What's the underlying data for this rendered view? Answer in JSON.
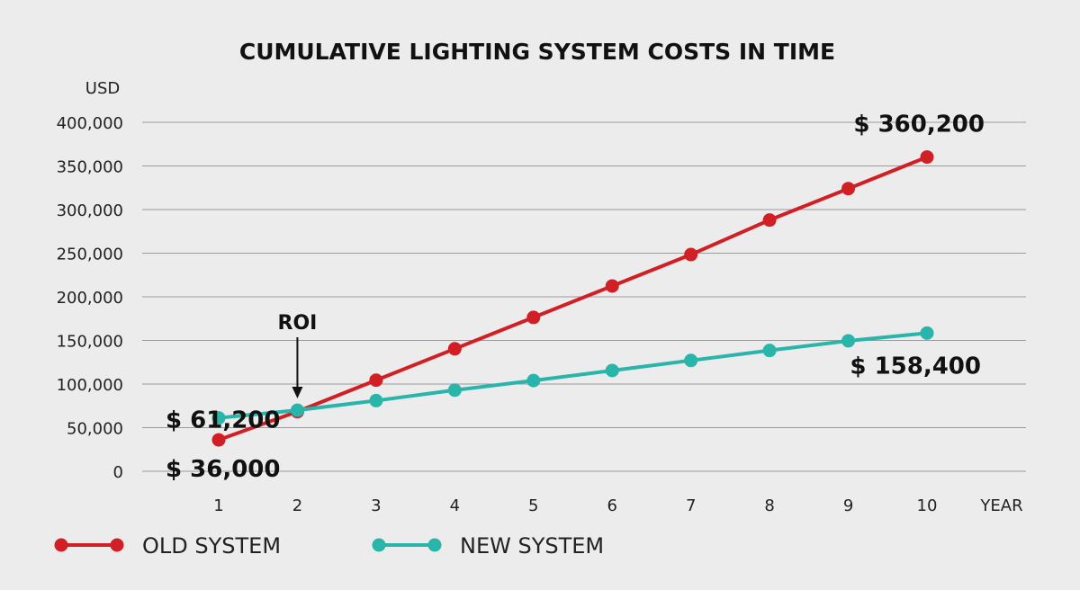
{
  "chart_data": {
    "type": "line",
    "title": "CUMULATIVE LIGHTING SYSTEM COSTS IN TIME",
    "ylabel": "USD",
    "xlabel": "YEAR",
    "x": [
      1,
      2,
      3,
      4,
      5,
      6,
      7,
      8,
      9,
      10
    ],
    "ylim": [
      0,
      400000
    ],
    "yticks": [
      0,
      50000,
      100000,
      150000,
      200000,
      250000,
      300000,
      350000,
      400000
    ],
    "ytick_labels": [
      "0",
      "50,000",
      "100,000",
      "150,000",
      "200,000",
      "250,000",
      "300,000",
      "350,000",
      "400,000"
    ],
    "grid": true,
    "legend_position": "bottom-left",
    "series": [
      {
        "name": "OLD SYSTEM",
        "color": "#d11f26",
        "values": [
          36000,
          68400,
          104400,
          140400,
          176400,
          212400,
          248400,
          288000,
          324000,
          360200
        ]
      },
      {
        "name": "NEW SYSTEM",
        "color": "#2ab5aa",
        "values": [
          61200,
          70000,
          81000,
          93000,
          104000,
          115500,
          127000,
          138500,
          149500,
          158400
        ]
      }
    ],
    "annotations": [
      {
        "text": "$ 360,200",
        "series": 0,
        "index": 9,
        "placement": "above"
      },
      {
        "text": "$ 158,400",
        "series": 1,
        "index": 9,
        "placement": "below"
      },
      {
        "text": "$ 61,200",
        "series": 1,
        "index": 0,
        "placement": "left-below"
      },
      {
        "text": "$ 36,000",
        "series": 0,
        "index": 0,
        "placement": "below-left"
      },
      {
        "text": "ROI",
        "x": 2,
        "arrow": true
      }
    ]
  }
}
